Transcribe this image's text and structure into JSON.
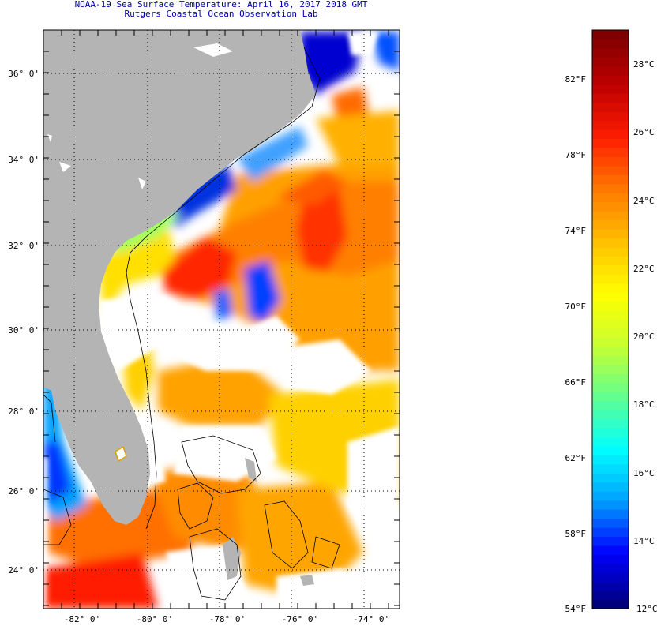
{
  "header": {
    "title": "NOAA-19 Sea Surface Temperature:  April 16, 2017 2018 GMT",
    "subtitle": "Rutgers Coastal Ocean Observation Lab"
  },
  "map": {
    "lat_labels": [
      "36° 0'",
      "34° 0'",
      "32° 0'",
      "30° 0'",
      "28° 0'",
      "26° 0'",
      "24° 0'"
    ],
    "lon_labels": [
      "-82° 0'",
      "-80° 0'",
      "-78° 0'",
      "-76° 0'",
      "-74° 0'"
    ],
    "colors": {
      "land": "#b4b4b4",
      "cloud": "#ffffff",
      "graticule": "#000000"
    }
  },
  "colorbar": {
    "fahrenheit": [
      "82°F",
      "78°F",
      "74°F",
      "70°F",
      "66°F",
      "62°F",
      "58°F",
      "54°F"
    ],
    "celsius": [
      "28°C",
      "26°C",
      "24°C",
      "22°C",
      "20°C",
      "18°C",
      "16°C",
      "14°C",
      "12°C"
    ],
    "colors": [
      "#00007f",
      "#0000ff",
      "#00a0ff",
      "#00ffff",
      "#60ff90",
      "#c8ff30",
      "#ffff00",
      "#ffc000",
      "#ff7a00",
      "#ff1e00",
      "#c00000",
      "#7f0000"
    ]
  }
}
